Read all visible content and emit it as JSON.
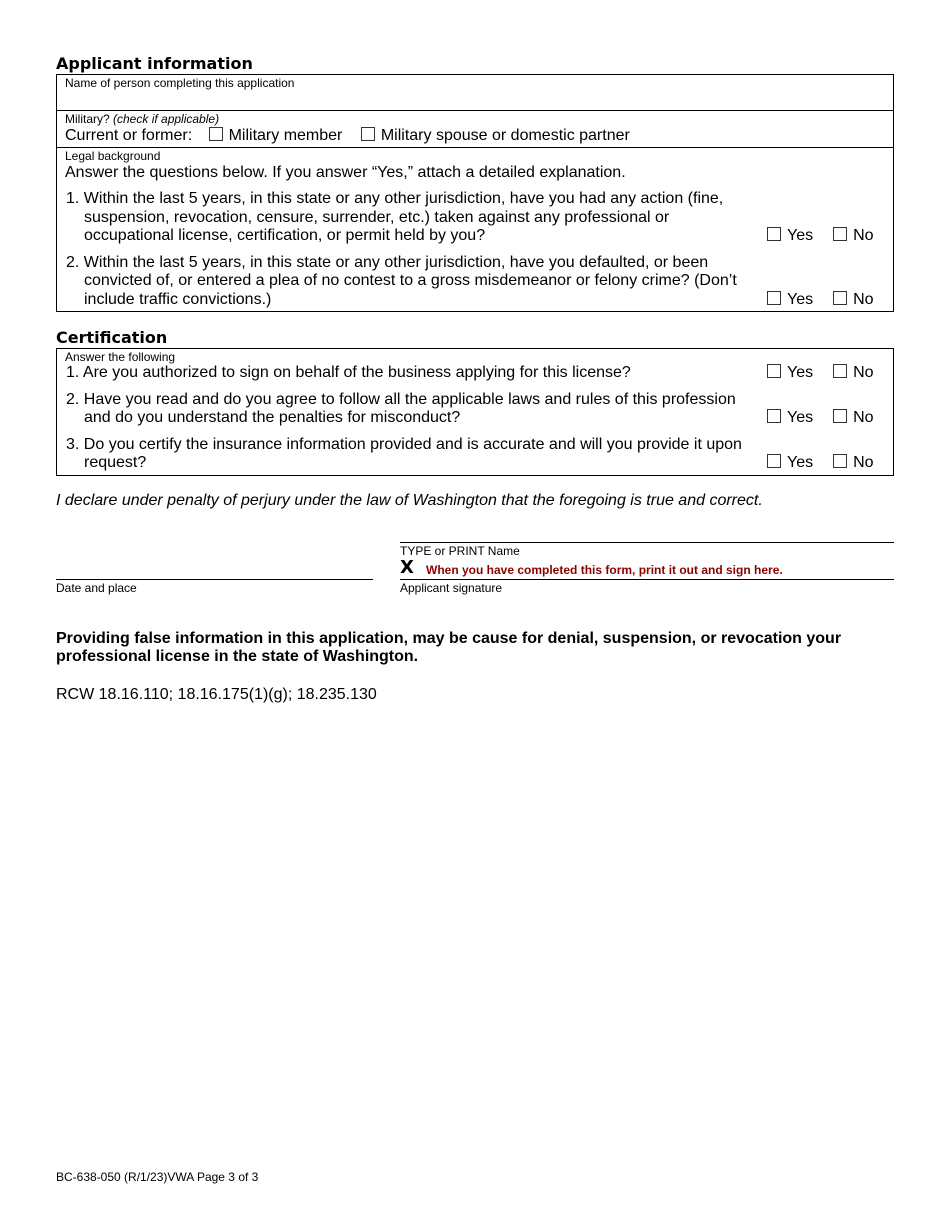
{
  "applicant": {
    "heading": "Applicant information",
    "name_label": "Name of person completing this application",
    "military_label": "Military?",
    "military_hint": "(check if applicable)",
    "current_former": "Current or former:",
    "opt_member": "Military member",
    "opt_spouse": "Military spouse or domestic partner",
    "legal_label": "Legal background",
    "legal_intro": "Answer the questions below. If you answer “Yes,” attach a detailed explanation.",
    "questions": [
      "1. Within the last 5 years, in this state or any other jurisdiction, have you had any action (fine, suspension, revocation, censure, surrender, etc.) taken against any professional or occupational license, certification, or permit held by you?",
      "2. Within the last 5 years, in this state or any other jurisdiction, have you defaulted, or been convicted of, or entered a plea of no contest to a gross misdemeanor or felony crime? (Don’t include traffic convictions.)"
    ]
  },
  "certification": {
    "heading": "Certification",
    "label": "Answer the following",
    "questions": [
      "1. Are you authorized to sign on behalf of the business applying for this license?",
      "2. Have you read and do you agree to follow all the applicable laws and rules of this profession and do you understand the penalties for misconduct?",
      "3. Do you certify the insurance information provided and is accurate and will you provide it upon request?"
    ]
  },
  "yes_label": "Yes",
  "no_label": "No",
  "declaration": "I declare under penalty of perjury under the law of Washington that the foregoing is true and correct.",
  "signature": {
    "print_name_label": "TYPE or PRINT Name",
    "x_mark": "X",
    "sign_instruction": "When you have completed this form, print it out and sign here.",
    "signature_label": "Applicant signature",
    "date_place_label": "Date and place",
    "instruction_color": "#8b0000"
  },
  "warning": "Providing false information in this application, may be cause for denial, suspension, or revocation your professional license in the state of Washington.",
  "rcw": "RCW 18.16.110; 18.16.175(1)(g); 18.235.130",
  "footer": "BC-638-050 (R/1/23)VWA Page 3 of 3"
}
